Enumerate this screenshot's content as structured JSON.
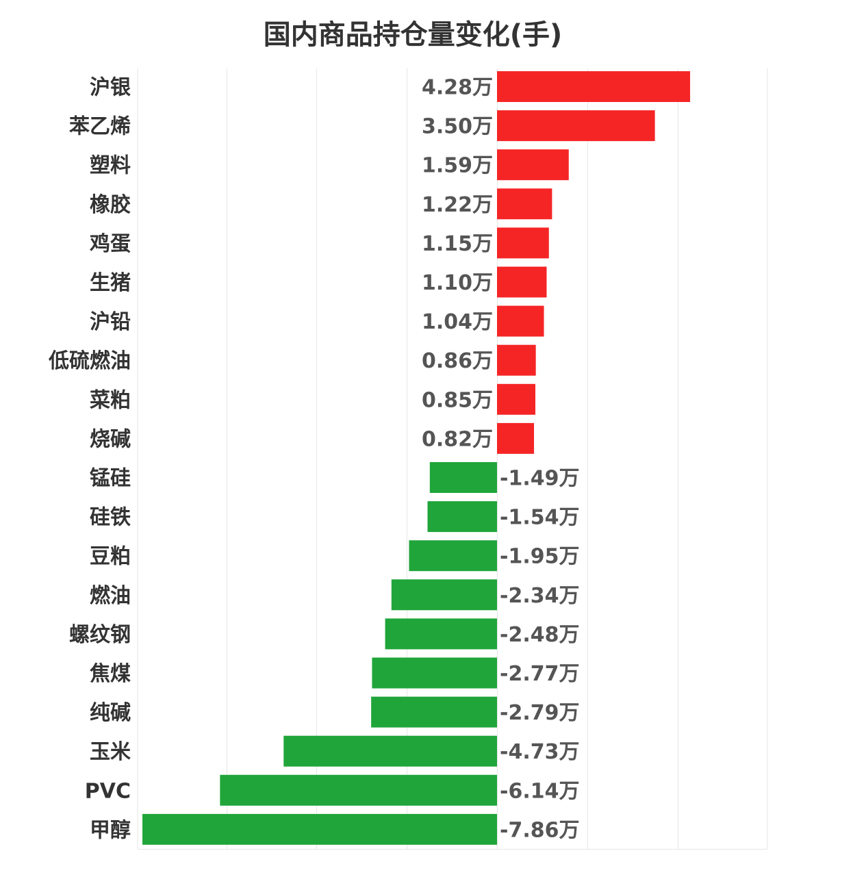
{
  "chart_data": {
    "type": "bar",
    "orientation": "horizontal",
    "title": "国内商品持仓量变化(手)",
    "xlabel": "",
    "ylabel": "",
    "unit_suffix": "万",
    "xlim": [
      -8,
      3
    ],
    "grid": true,
    "colors": {
      "positive": "#f52526",
      "negative": "#20a53a"
    },
    "categories": [
      "沪银",
      "苯乙烯",
      "塑料",
      "橡胶",
      "鸡蛋",
      "生猪",
      "沪铅",
      "低硫燃油",
      "菜粕",
      "烧碱",
      "锰硅",
      "硅铁",
      "豆粕",
      "燃油",
      "螺纹钢",
      "焦煤",
      "纯碱",
      "玉米",
      "PVC",
      "甲醇"
    ],
    "values": [
      4.28,
      3.5,
      1.59,
      1.22,
      1.15,
      1.1,
      1.04,
      0.86,
      0.85,
      0.82,
      -1.49,
      -1.54,
      -1.95,
      -2.34,
      -2.48,
      -2.77,
      -2.79,
      -4.73,
      -6.14,
      -7.86
    ],
    "value_labels": [
      "4.28万",
      "3.50万",
      "1.59万",
      "1.22万",
      "1.15万",
      "1.10万",
      "1.04万",
      "0.86万",
      "0.85万",
      "0.82万",
      "-1.49万",
      "-1.54万",
      "-1.95万",
      "-2.34万",
      "-2.48万",
      "-2.77万",
      "-2.79万",
      "-4.73万",
      "-6.14万",
      "-7.86万"
    ]
  }
}
